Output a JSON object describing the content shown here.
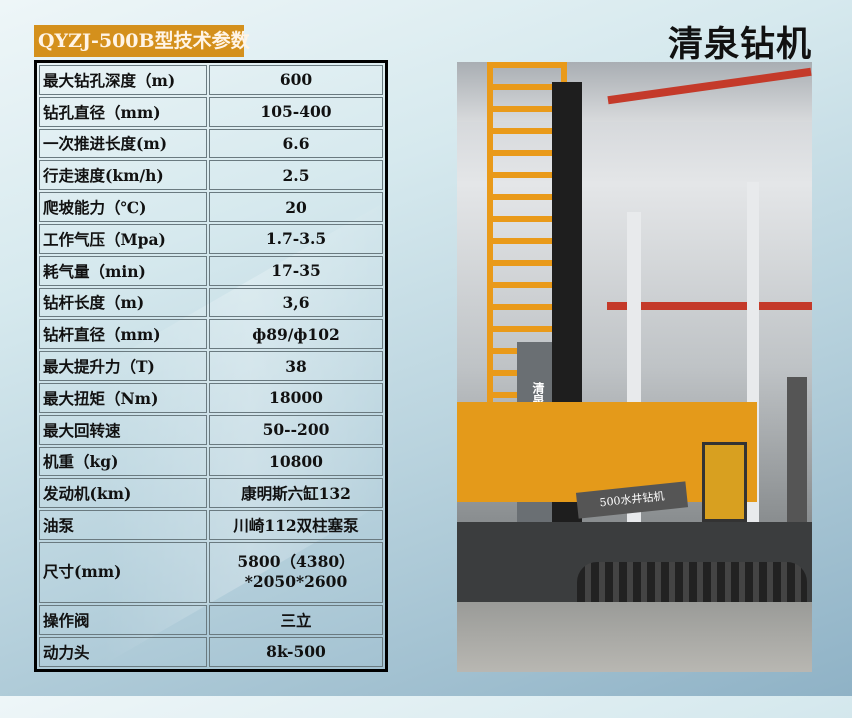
{
  "header": {
    "badge": "QYZJ-500B型技术参数",
    "brand": "清泉钻机"
  },
  "specs": [
    {
      "label": "最大钻孔深度（m)",
      "value": "600"
    },
    {
      "label": "钻孔直径（mm)",
      "value": "105-400"
    },
    {
      "label": "一次推进长度(m)",
      "value": "6.6"
    },
    {
      "label": "行走速度(km/h)",
      "value": "2.5"
    },
    {
      "label": "爬坡能力（℃)",
      "value": "20"
    },
    {
      "label": "工作气压（Mpa)",
      "value": "1.7-3.5"
    },
    {
      "label": "耗气量（min)",
      "value": "17-35"
    },
    {
      "label": "钻杆长度（m)",
      "value": "3,6"
    },
    {
      "label": "钻杆直径（mm)",
      "value": "ф89/ф102"
    },
    {
      "label": "最大提升力（T)",
      "value": "38"
    },
    {
      "label": "最大扭矩（Nm)",
      "value": "18000"
    },
    {
      "label": "最大回转速",
      "value": "50--200"
    },
    {
      "label": "机重（kg)",
      "value": "10800"
    },
    {
      "label": "发动机(km)",
      "value": "康明斯六缸132"
    },
    {
      "label": "油泵",
      "value": "川崎112双柱塞泵"
    },
    {
      "label": "尺寸(mm)",
      "value": "5800（4380）",
      "value2": "*2050*2600"
    },
    {
      "label": "操作阀",
      "value": "三立"
    },
    {
      "label": "动力头",
      "value": "8k-500"
    }
  ],
  "photo": {
    "mast_text": "清泉钻机",
    "tag": "500水井钻机"
  }
}
